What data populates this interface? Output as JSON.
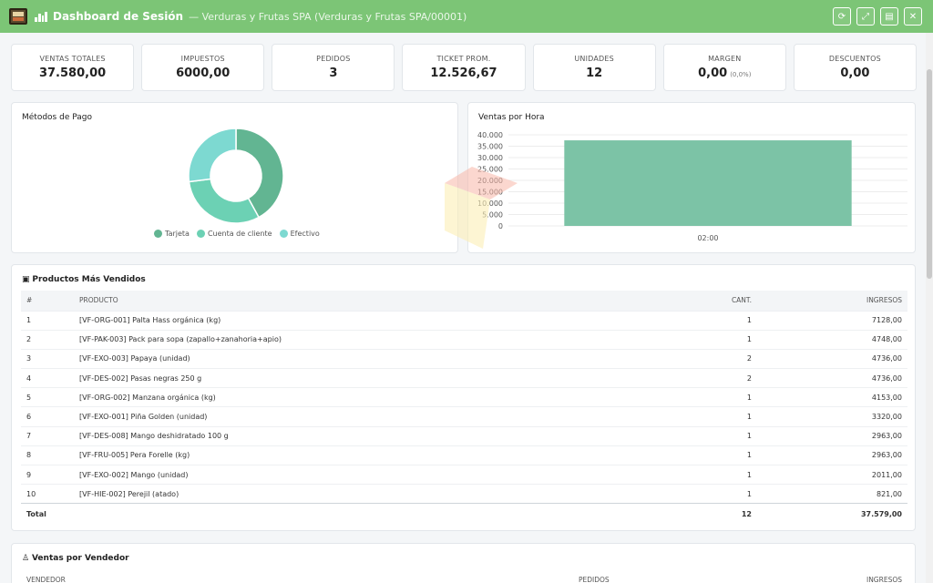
{
  "header": {
    "title": "Dashboard de Sesión",
    "subtitle": "— Verduras y Frutas SPA (Verduras y Frutas SPA/00001)",
    "logo_icon": "store-logo-icon",
    "title_icon": "bar-chart-icon",
    "actions": [
      {
        "name": "refresh-button",
        "icon": "refresh-icon",
        "glyph": "⟳"
      },
      {
        "name": "expand-button",
        "icon": "expand-icon",
        "glyph": "⤢"
      },
      {
        "name": "export-button",
        "icon": "file-icon",
        "glyph": "▤"
      },
      {
        "name": "close-button",
        "icon": "close-icon",
        "glyph": "✕"
      }
    ]
  },
  "kpis": [
    {
      "label": "VENTAS TOTALES",
      "value": "37.580,00",
      "sub": ""
    },
    {
      "label": "IMPUESTOS",
      "value": "6000,00",
      "sub": ""
    },
    {
      "label": "PEDIDOS",
      "value": "3",
      "sub": ""
    },
    {
      "label": "TICKET PROM.",
      "value": "12.526,67",
      "sub": ""
    },
    {
      "label": "UNIDADES",
      "value": "12",
      "sub": ""
    },
    {
      "label": "MARGEN",
      "value": "0,00",
      "sub": "(0,0%)"
    },
    {
      "label": "DESCUENTOS",
      "value": "0,00",
      "sub": ""
    }
  ],
  "colors": {
    "header_bg": "#7cc576",
    "tarjeta": "#62b592",
    "cuenta": "#6cd1b4",
    "efectivo": "#7dd9d1",
    "bar": "#7cc3a6"
  },
  "payment_panel": {
    "title": "Métodos de Pago"
  },
  "hour_panel": {
    "title": "Ventas por Hora"
  },
  "chart_data": [
    {
      "type": "pie",
      "title": "Métodos de Pago",
      "legend_position": "bottom",
      "labels": [
        "Tarjeta",
        "Cuenta de cliente",
        "Efectivo"
      ],
      "values": [
        42,
        31,
        27
      ]
    },
    {
      "type": "bar",
      "title": "Ventas por Hora",
      "categories": [
        "02:00"
      ],
      "values": [
        37580
      ],
      "ylim": [
        0,
        40000
      ],
      "yticks": [
        "0",
        "5.000",
        "10.000",
        "15.000",
        "20.000",
        "25.000",
        "30.000",
        "35.000",
        "40.000"
      ],
      "grid": true
    }
  ],
  "products": {
    "title": "Productos Más Vendidos",
    "icon": "box-icon",
    "columns": {
      "idx": "#",
      "product": "PRODUCTO",
      "qty": "CANT.",
      "revenue": "INGRESOS"
    },
    "rows": [
      {
        "idx": "1",
        "product": "[VF-ORG-001] Palta Hass orgánica (kg)",
        "qty": "1",
        "revenue": "7128,00"
      },
      {
        "idx": "2",
        "product": "[VF-PAK-003] Pack para sopa (zapallo+zanahoria+apio)",
        "qty": "1",
        "revenue": "4748,00"
      },
      {
        "idx": "3",
        "product": "[VF-EXO-003] Papaya (unidad)",
        "qty": "2",
        "revenue": "4736,00"
      },
      {
        "idx": "4",
        "product": "[VF-DES-002] Pasas negras 250 g",
        "qty": "2",
        "revenue": "4736,00"
      },
      {
        "idx": "5",
        "product": "[VF-ORG-002] Manzana orgánica (kg)",
        "qty": "1",
        "revenue": "4153,00"
      },
      {
        "idx": "6",
        "product": "[VF-EXO-001] Piña Golden (unidad)",
        "qty": "1",
        "revenue": "3320,00"
      },
      {
        "idx": "7",
        "product": "[VF-DES-008] Mango deshidratado 100 g",
        "qty": "1",
        "revenue": "2963,00"
      },
      {
        "idx": "8",
        "product": "[VF-FRU-005] Pera Forelle (kg)",
        "qty": "1",
        "revenue": "2963,00"
      },
      {
        "idx": "9",
        "product": "[VF-EXO-002] Mango (unidad)",
        "qty": "1",
        "revenue": "2011,00"
      },
      {
        "idx": "10",
        "product": "[VF-HIE-002] Perejil (atado)",
        "qty": "1",
        "revenue": "821,00"
      }
    ],
    "total": {
      "label": "Total",
      "qty": "12",
      "revenue": "37.579,00"
    }
  },
  "vendors": {
    "title": "Ventas por Vendedor",
    "icon": "user-icon",
    "columns": {
      "vendor": "VENDEDOR",
      "orders": "PEDIDOS",
      "revenue": "INGRESOS"
    }
  }
}
